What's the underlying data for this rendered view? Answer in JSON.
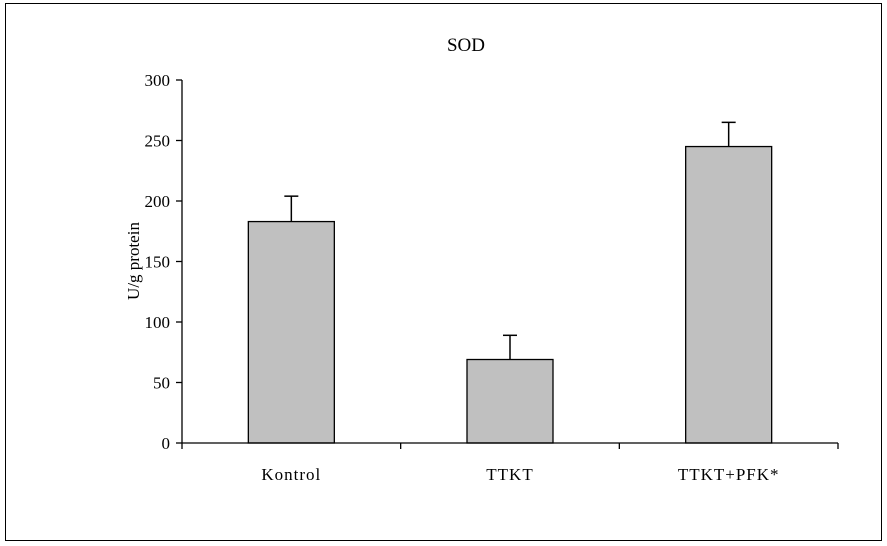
{
  "chart_data": {
    "type": "bar",
    "title": "SOD",
    "xlabel": "",
    "ylabel": "U/g protein",
    "categories": [
      "Kontrol",
      "TTKT",
      "TTKT+PFK*"
    ],
    "series": [
      {
        "values": [
          183,
          69,
          245
        ],
        "error": [
          21,
          20,
          20
        ]
      }
    ],
    "ylim": [
      0,
      300
    ],
    "yticks": [
      0,
      50,
      100,
      150,
      200,
      250,
      300
    ],
    "grid": false,
    "legend": "none",
    "colors": {
      "bar_fill": "#c0c0c0",
      "bar_stroke": "#000000",
      "axis": "#000000",
      "frame": "#000000"
    }
  }
}
